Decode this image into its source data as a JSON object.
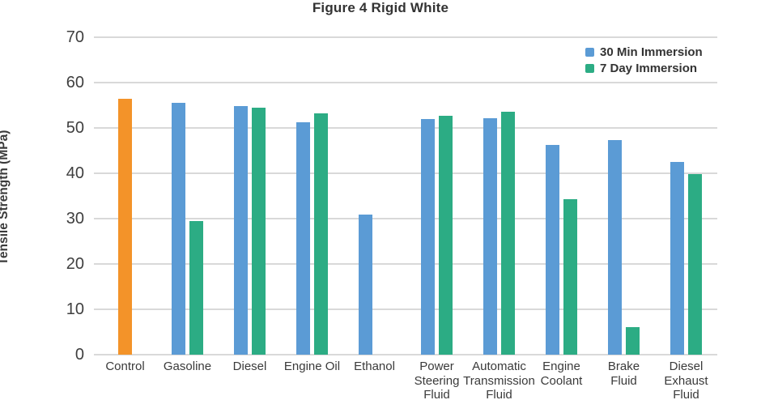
{
  "figure": {
    "title": "Figure 4 Rigid White"
  },
  "chart_data": {
    "type": "bar",
    "title": "Figure 4 Rigid White",
    "xlabel": "",
    "ylabel": "Tensile Strength (MPa)",
    "ylim": [
      0,
      70
    ],
    "ytick_interval": 10,
    "grid": "horizontal",
    "legend_position": "top-right",
    "categories": [
      "Control",
      "Gasoline",
      "Diesel",
      "Engine Oil",
      "Ethanol",
      "Power Steering Fluid",
      "Automatic Transmission Fluid",
      "Engine Coolant",
      "Brake Fluid",
      "Diesel Exhaust Fluid"
    ],
    "category_label_lines": [
      [
        "Control"
      ],
      [
        "Gasoline"
      ],
      [
        "Diesel"
      ],
      [
        "Engine Oil"
      ],
      [
        "Ethanol"
      ],
      [
        "Power",
        "Steering",
        "Fluid"
      ],
      [
        "Automatic",
        "Transmission",
        "Fluid"
      ],
      [
        "Engine",
        "Coolant"
      ],
      [
        "Brake",
        "Fluid"
      ],
      [
        "Diesel",
        "Exhaust",
        "Fluid"
      ]
    ],
    "series": [
      {
        "name": "Control",
        "role": "control",
        "color": "#F39329",
        "in_legend": false,
        "values": [
          56.5,
          null,
          null,
          null,
          null,
          null,
          null,
          null,
          null,
          null
        ]
      },
      {
        "name": "30 Min Immersion",
        "role": "left",
        "color": "#5B9BD5",
        "in_legend": true,
        "values": [
          null,
          55.5,
          54.8,
          51.2,
          30.9,
          52.0,
          52.2,
          46.3,
          47.4,
          42.5
        ]
      },
      {
        "name": "7 Day Immersion",
        "role": "right",
        "color": "#2CAC84",
        "in_legend": true,
        "values": [
          null,
          29.5,
          54.4,
          53.3,
          null,
          52.6,
          53.5,
          34.3,
          6.0,
          39.8
        ]
      }
    ],
    "legend": [
      {
        "label": "30 Min Immersion",
        "color": "#5B9BD5"
      },
      {
        "label": "7 Day Immersion",
        "color": "#2CAC84"
      }
    ],
    "colors": {
      "grid": "#D9D9D9",
      "text": "#3A3A3A"
    },
    "yticks": [
      0,
      10,
      20,
      30,
      40,
      50,
      60,
      70
    ]
  }
}
